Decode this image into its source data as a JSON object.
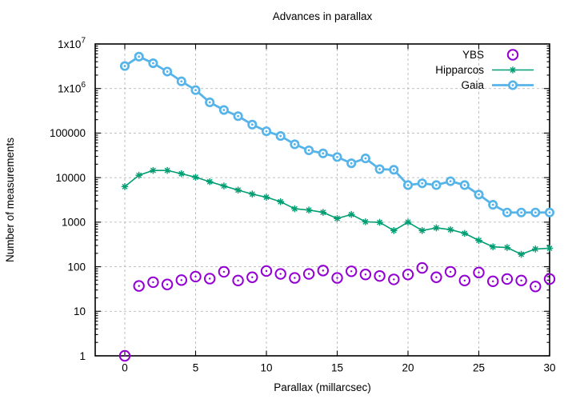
{
  "window": {
    "background": "#ffffff"
  },
  "chart_data": {
    "type": "line",
    "title": "Advances in parallax",
    "xlabel": "Parallax (millarcsec)",
    "ylabel": "Number of measurements",
    "grid": {
      "shown": true,
      "style": "dashed",
      "color": "#b9b9b9"
    },
    "legend": {
      "position": "top-right-inside",
      "entries": [
        "YBS",
        "Hipparcos",
        "Gaia"
      ]
    },
    "x_axis": {
      "min": -2.1,
      "max": 30,
      "ticks": [
        0,
        5,
        10,
        15,
        20,
        25,
        30
      ]
    },
    "y_axis": {
      "scale": "log",
      "min": 1,
      "max": 10000000,
      "ticks": [
        {
          "v": 1,
          "label": "1"
        },
        {
          "v": 10,
          "label": "10"
        },
        {
          "v": 100,
          "label": "100"
        },
        {
          "v": 1000,
          "label": "1000"
        },
        {
          "v": 10000,
          "label": "10000"
        },
        {
          "v": 100000,
          "label": "100000"
        },
        {
          "v": 1000000,
          "label": "1x10^6"
        },
        {
          "v": 10000000,
          "label": "1x10^7"
        }
      ]
    },
    "x": [
      0,
      1,
      2,
      3,
      4,
      5,
      6,
      7,
      8,
      9,
      10,
      11,
      12,
      13,
      14,
      15,
      16,
      17,
      18,
      19,
      20,
      21,
      22,
      23,
      24,
      25,
      26,
      27,
      28,
      29,
      30
    ],
    "series": [
      {
        "name": "YBS",
        "color": "#9400d3",
        "marker": "open-circle-with-dot",
        "line": false,
        "values": [
          1,
          37,
          45,
          40,
          50,
          60,
          54,
          77,
          49,
          58,
          80,
          69,
          56,
          69,
          82,
          56,
          79,
          67,
          62,
          52,
          67,
          94,
          58,
          77,
          49,
          74,
          47,
          53,
          49,
          36,
          53
        ]
      },
      {
        "name": "Hipparcos",
        "color": "#009e73",
        "marker": "asterisk",
        "line": true,
        "values": [
          6300,
          11300,
          14500,
          14500,
          12250,
          10200,
          8100,
          6500,
          5250,
          4270,
          3630,
          2880,
          2000,
          1870,
          1660,
          1210,
          1490,
          1020,
          990,
          650,
          1000,
          650,
          745,
          680,
          560,
          390,
          280,
          270,
          190,
          250,
          260
        ]
      },
      {
        "name": "Gaia",
        "color": "#56b4e9",
        "marker": "dotted-circle-filled",
        "line": true,
        "values": [
          3200000,
          5200000,
          3700000,
          2400000,
          1450000,
          920000,
          490000,
          330000,
          240000,
          155000,
          110000,
          86000,
          56000,
          41000,
          35000,
          29000,
          21000,
          27000,
          15500,
          15000,
          6800,
          7450,
          6800,
          8300,
          6800,
          4170,
          2460,
          1650,
          1650,
          1650,
          1650
        ]
      }
    ]
  }
}
